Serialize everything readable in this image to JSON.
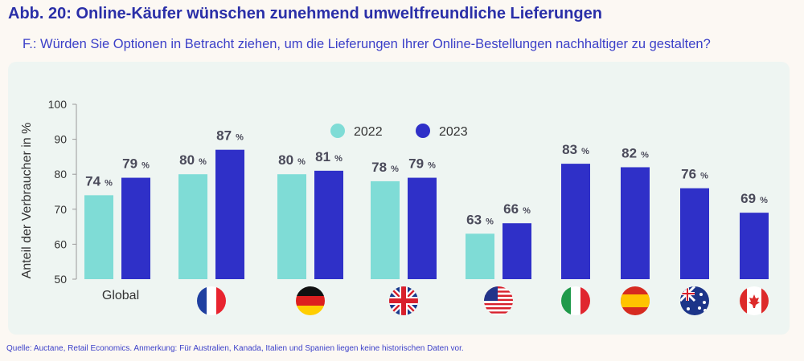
{
  "title": "Abb. 20: Online-Käufer wünschen zunehmend umweltfreundliche Lieferungen",
  "subtitle": "F.: Würden Sie Optionen in Betracht ziehen, um die Lieferungen Ihrer Online-Bestellungen nachhaltiger zu gestalten?",
  "source": "Quelle: Auctane, Retail Economics. Anmerkung: Für Australien, Kanada, Italien und Spanien liegen keine historischen Daten vor.",
  "colors": {
    "2022": "#7fdcd6",
    "2023": "#2f30c8",
    "title": "#2a2fa8"
  },
  "chart_data": {
    "type": "bar",
    "ylabel": "Anteil der Verbraucher in %",
    "ylim": [
      50,
      100
    ],
    "yticks": [
      50,
      60,
      70,
      80,
      90,
      100
    ],
    "legend_placement": "top-center",
    "value_suffix": "%",
    "categories": [
      "Global",
      "France",
      "Germany",
      "United Kingdom",
      "United States",
      "Italy",
      "Spain",
      "Australia",
      "Canada"
    ],
    "category_labels": [
      "Global",
      "",
      "",
      "",
      "",
      "",
      "",
      "",
      ""
    ],
    "category_icons": [
      "",
      "flag-france-icon",
      "flag-germany-icon",
      "flag-uk-icon",
      "flag-usa-icon",
      "flag-italy-icon",
      "flag-spain-icon",
      "flag-australia-icon",
      "flag-canada-icon"
    ],
    "series": [
      {
        "name": "2022",
        "values": [
          74,
          80,
          80,
          78,
          63,
          null,
          null,
          null,
          null
        ]
      },
      {
        "name": "2023",
        "values": [
          79,
          87,
          81,
          79,
          66,
          83,
          82,
          76,
          69
        ]
      }
    ]
  }
}
